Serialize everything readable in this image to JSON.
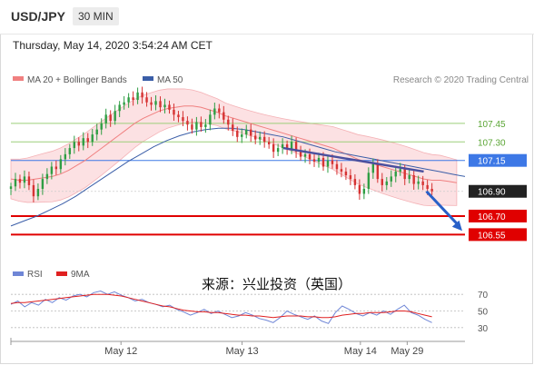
{
  "header": {
    "symbol": "USD/JPY",
    "timeframe": "30 MIN"
  },
  "datetime": "Thursday, May 14, 2020 3:54:24 AM CET",
  "legend": {
    "items": [
      "MA 20 + Bollinger Bands",
      "MA 50"
    ],
    "colors": [
      "#f08080",
      "#3b5ea8"
    ]
  },
  "credit": "Research © 2020 Trading Central",
  "watermark": "来源：兴业投资（英国）",
  "rsi_legend": {
    "items": [
      "RSI",
      "9MA"
    ],
    "colors": [
      "#6f86d6",
      "#e02020"
    ]
  },
  "chart_data": {
    "type": "line",
    "y_range": [
      106.45,
      107.75
    ],
    "x_range": [
      0,
      165
    ],
    "x_tick_labels": [
      {
        "label": "May 12",
        "x": 40
      },
      {
        "label": "May 13",
        "x": 84
      },
      {
        "label": "May 14",
        "x": 127
      },
      {
        "label": "May 29",
        "x": 144
      }
    ],
    "levels": [
      {
        "value": 107.45,
        "label": "107.45",
        "kind": "resistance-light"
      },
      {
        "value": 107.3,
        "label": "107.30",
        "kind": "resistance-light"
      },
      {
        "value": 107.15,
        "label": "107.15",
        "kind": "pivot"
      },
      {
        "value": 106.9,
        "label": "106.90",
        "kind": "last"
      },
      {
        "value": 106.7,
        "label": "106.70",
        "kind": "support"
      },
      {
        "value": 106.55,
        "label": "106.55",
        "kind": "support"
      }
    ],
    "price": [
      106.94,
      107.0,
      106.97,
      107.02,
      106.95,
      106.86,
      106.92,
      107.0,
      107.04,
      107.1,
      107.08,
      107.16,
      107.2,
      107.25,
      107.3,
      107.27,
      107.33,
      107.3,
      107.36,
      107.4,
      107.45,
      107.52,
      107.47,
      107.55,
      107.6,
      107.62,
      107.66,
      107.64,
      107.7,
      107.66,
      107.62,
      107.6,
      107.63,
      107.58,
      107.6,
      107.56,
      107.52,
      107.5,
      107.47,
      107.44,
      107.4,
      107.46,
      107.42,
      107.44,
      107.52,
      107.57,
      107.54,
      107.48,
      107.44,
      107.39,
      107.34,
      107.36,
      107.4,
      107.35,
      107.32,
      107.34,
      107.3,
      107.28,
      107.22,
      107.25,
      107.28,
      107.24,
      107.3,
      107.22,
      107.18,
      107.2,
      107.16,
      107.14,
      107.17,
      107.1,
      107.15,
      107.12,
      107.08,
      107.06,
      107.03,
      107.0,
      106.95,
      106.88,
      106.92,
      107.05,
      107.12,
      107.0,
      106.95,
      106.98,
      107.02,
      107.06,
      107.08,
      107.0,
      107.03,
      106.96,
      106.98,
      106.95,
      106.92,
      106.9
    ],
    "ma20": [
      107.0,
      106.99,
      106.99,
      107.0,
      107.01,
      107.02,
      107.04,
      107.07,
      107.11,
      107.15,
      107.2,
      107.25,
      107.3,
      107.35,
      107.4,
      107.45,
      107.49,
      107.52,
      107.55,
      107.57,
      107.58,
      107.59,
      107.59,
      107.58,
      107.56,
      107.54,
      107.51,
      107.49,
      107.47,
      107.45,
      107.43,
      107.41,
      107.39,
      107.37,
      107.35,
      107.33,
      107.31,
      107.29,
      107.27,
      107.25,
      107.22,
      107.19,
      107.16,
      107.14,
      107.12,
      107.1,
      107.08,
      107.06,
      107.04,
      107.02,
      107.0,
      106.99,
      106.99,
      106.98,
      106.97
    ],
    "ma50": [
      106.62,
      106.66,
      106.7,
      106.75,
      106.8,
      106.86,
      106.93,
      107.0,
      107.07,
      107.14,
      107.2,
      107.26,
      107.31,
      107.35,
      107.38,
      107.4,
      107.41,
      107.41,
      107.4,
      107.38,
      107.36,
      107.34,
      107.31,
      107.28,
      107.25,
      107.22,
      107.2,
      107.18,
      107.16,
      107.14,
      107.12,
      107.1,
      107.08,
      107.06,
      107.04,
      107.02
    ],
    "trendline": [
      {
        "x": 99,
        "y": 107.25
      },
      {
        "x": 150,
        "y": 107.06
      }
    ],
    "arrow": [
      {
        "x": 151,
        "y": 106.9
      },
      {
        "x": 164,
        "y": 106.58
      }
    ],
    "rsi": {
      "y_ticks": [
        70,
        50,
        30
      ],
      "rsi": [
        58,
        62,
        55,
        60,
        57,
        64,
        60,
        66,
        63,
        68,
        70,
        67,
        72,
        74,
        70,
        73,
        69,
        66,
        62,
        64,
        60,
        58,
        55,
        57,
        52,
        49,
        45,
        48,
        52,
        47,
        50,
        46,
        42,
        44,
        48,
        45,
        41,
        39,
        36,
        42,
        50,
        46,
        43,
        40,
        44,
        38,
        35,
        48,
        56,
        52,
        47,
        44,
        48,
        45,
        50,
        46,
        52,
        57,
        48,
        45,
        40,
        36
      ],
      "ma9": [
        59,
        60,
        60,
        61,
        62,
        63,
        64,
        65,
        66,
        67,
        68,
        69,
        70,
        70,
        70,
        69,
        68,
        66,
        64,
        62,
        60,
        58,
        56,
        55,
        53,
        51,
        50,
        49,
        49,
        48,
        48,
        47,
        46,
        45,
        45,
        44,
        44,
        43,
        42,
        43,
        44,
        44,
        44,
        43,
        43,
        42,
        42,
        43,
        45,
        46,
        47,
        47,
        48,
        48,
        48,
        49,
        50,
        50,
        49,
        47,
        45,
        43
      ]
    }
  }
}
